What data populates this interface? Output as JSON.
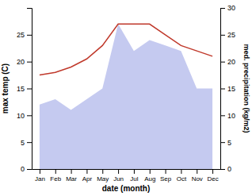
{
  "chart_data": {
    "type": "line",
    "xlabel": "date (month)",
    "ylabel": "max temp (C)",
    "y2label": "med. precipitation (kg/m2)",
    "categories": [
      "Jan",
      "Feb",
      "Mar",
      "Apr",
      "May",
      "Jun",
      "Jul",
      "Aug",
      "Sep",
      "Oct",
      "Nov",
      "Dec"
    ],
    "series": [
      {
        "type": "area",
        "color": "#c5caf0",
        "axis": "y2",
        "values": [
          12.0,
          13.0,
          11.0,
          13.0,
          15.0,
          27.0,
          22.0,
          24.0,
          23.0,
          22.0,
          15.0,
          15.0
        ]
      },
      {
        "type": "line",
        "color": "#c0392b",
        "values": [
          17.5,
          18.0,
          19.0,
          20.5,
          23.0,
          27.0,
          27.0,
          27.0,
          25.0,
          23.0,
          22.0,
          21.0
        ]
      }
    ],
    "ylim": [
      0,
      30
    ],
    "yticks": [
      0,
      5,
      10,
      15,
      20,
      25
    ],
    "y2lim": [
      0,
      30
    ],
    "y2ticks": [
      0,
      5,
      10,
      15,
      20,
      25,
      30
    ],
    "grid": false
  }
}
